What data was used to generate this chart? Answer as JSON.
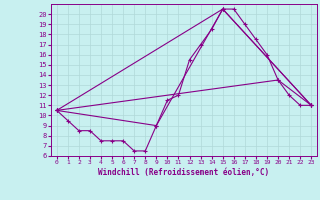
{
  "xlabel": "Windchill (Refroidissement éolien,°C)",
  "bg_color": "#c8f0f0",
  "grid_color": "#b0d8d8",
  "line_color": "#880088",
  "xlim": [
    -0.5,
    23.5
  ],
  "ylim": [
    6,
    21
  ],
  "xticks": [
    0,
    1,
    2,
    3,
    4,
    5,
    6,
    7,
    8,
    9,
    10,
    11,
    12,
    13,
    14,
    15,
    16,
    17,
    18,
    19,
    20,
    21,
    22,
    23
  ],
  "yticks": [
    6,
    7,
    8,
    9,
    10,
    11,
    12,
    13,
    14,
    15,
    16,
    17,
    18,
    19,
    20
  ],
  "lines": [
    {
      "x": [
        0,
        1,
        2,
        3,
        4,
        5,
        6,
        7,
        8,
        9,
        10,
        11,
        12,
        13,
        14,
        15,
        16,
        17,
        18,
        19,
        20,
        21,
        22,
        23
      ],
      "y": [
        10.5,
        9.5,
        8.5,
        8.5,
        7.5,
        7.5,
        7.5,
        6.5,
        6.5,
        9.0,
        11.5,
        12.0,
        15.5,
        17.0,
        18.5,
        20.5,
        20.5,
        19.0,
        17.5,
        16.0,
        13.5,
        12.0,
        11.0,
        11.0
      ]
    },
    {
      "x": [
        0,
        9,
        15,
        23
      ],
      "y": [
        10.5,
        9.0,
        20.5,
        11.0
      ]
    },
    {
      "x": [
        0,
        15,
        23
      ],
      "y": [
        10.5,
        20.5,
        11.0
      ]
    },
    {
      "x": [
        0,
        20,
        23
      ],
      "y": [
        10.5,
        13.5,
        11.0
      ]
    }
  ],
  "figsize": [
    3.2,
    2.0
  ],
  "dpi": 100
}
